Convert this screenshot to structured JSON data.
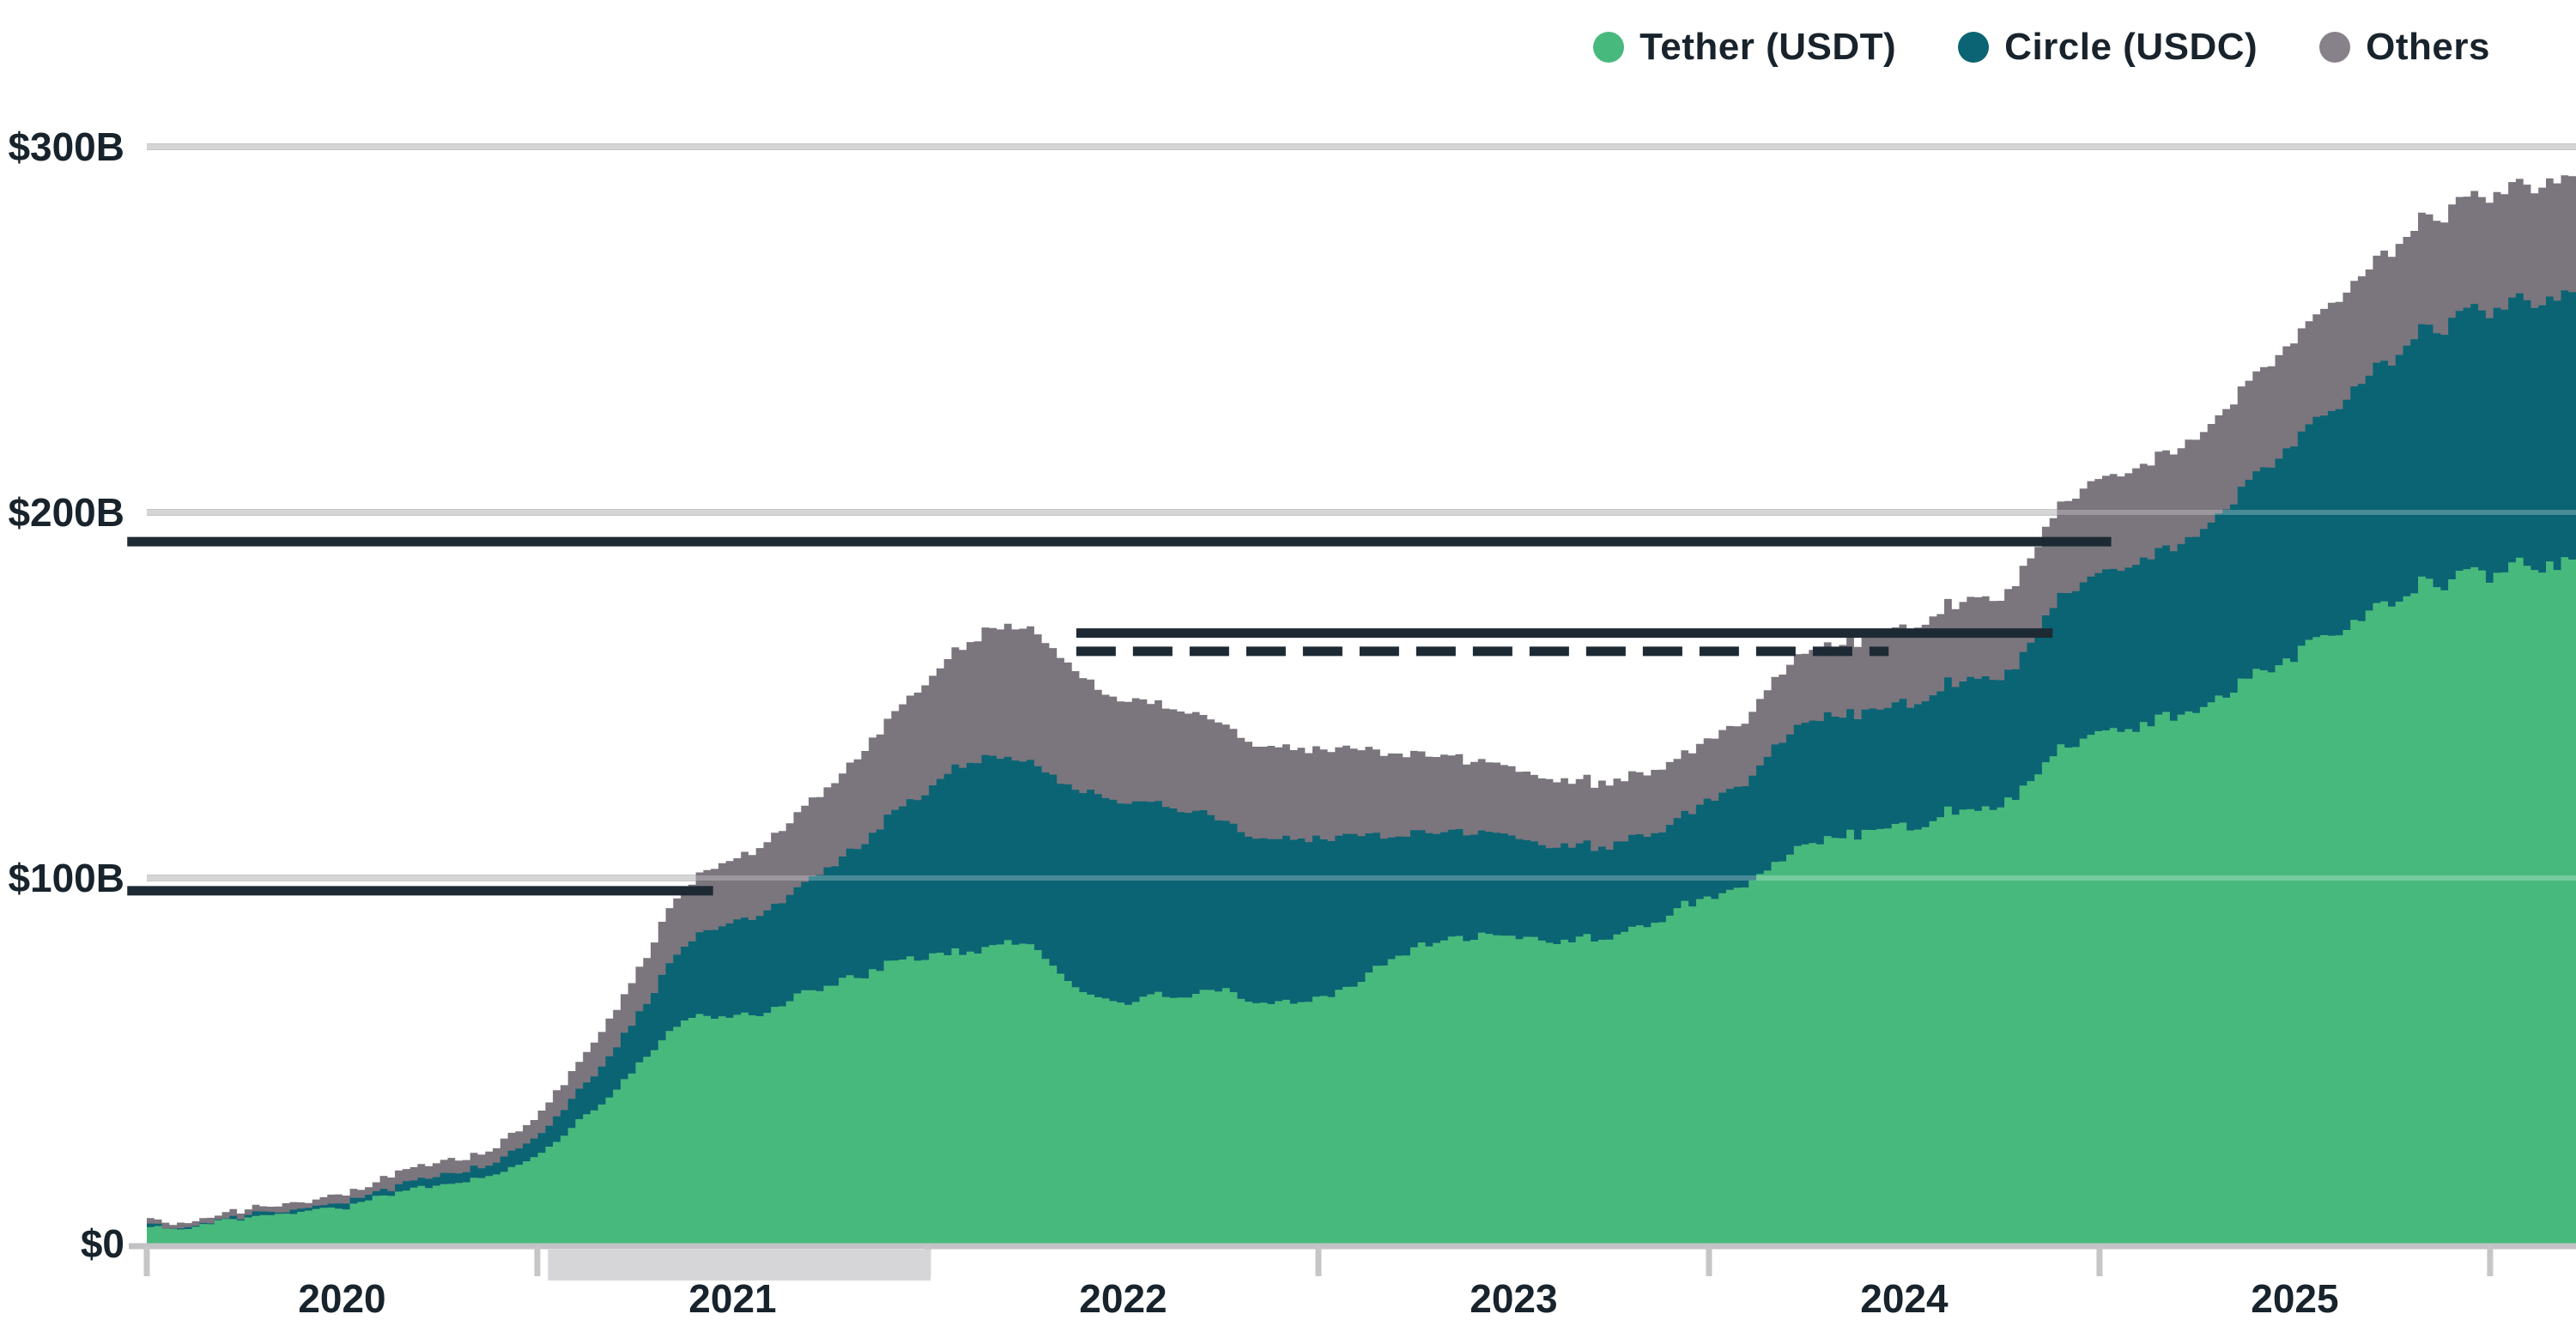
{
  "legend": {
    "items": [
      {
        "label": "Tether (USDT)",
        "color": "#48b97d"
      },
      {
        "label": "Circle (USDC)",
        "color": "#0b6473"
      },
      {
        "label": "Others",
        "color": "#87828a"
      }
    ]
  },
  "chart_data": {
    "type": "area",
    "stacked": true,
    "title": "",
    "xlabel": "",
    "ylabel": "",
    "unit": "$B",
    "x_start": 2020.0,
    "x_step_months": 1,
    "x_end": 2026.22,
    "ylim": [
      0,
      300
    ],
    "grid": "horizontal",
    "legend_position": "top-right",
    "yticks": [
      {
        "value": 0,
        "label": "$0"
      },
      {
        "value": 100,
        "label": "$100B"
      },
      {
        "value": 200,
        "label": "$200B"
      },
      {
        "value": 300,
        "label": "$300B"
      }
    ],
    "gridline_values": [
      100,
      200,
      300
    ],
    "xticks": [
      2020,
      2021,
      2022,
      2023,
      2024,
      2025,
      2026
    ],
    "xtick_labels": [
      {
        "x": 2020.5,
        "label": "2020"
      },
      {
        "x": 2021.5,
        "label": "2021"
      },
      {
        "x": 2022.5,
        "label": "2022"
      },
      {
        "x": 2023.5,
        "label": "2023"
      },
      {
        "x": 2024.5,
        "label": "2024"
      },
      {
        "x": 2025.5,
        "label": "2025"
      }
    ],
    "series": [
      {
        "name": "Tether (USDT)",
        "color": "#48b97d",
        "values": [
          4.2,
          4.4,
          5.8,
          7.3,
          8.3,
          9.1,
          10.0,
          12.8,
          14.8,
          15.9,
          17.6,
          20.6,
          24.2,
          32.5,
          39.0,
          49.0,
          58.5,
          62.8,
          62.2,
          63.5,
          68.5,
          70.8,
          73.8,
          78.3,
          78.7,
          79.8,
          81.2,
          82.7,
          74.0,
          67.0,
          66.2,
          67.8,
          68.3,
          69.2,
          65.8,
          66.2,
          67.2,
          70.8,
          76.8,
          81.3,
          83.3,
          83.8,
          84.0,
          83.0,
          83.4,
          84.2,
          87.2,
          91.7,
          95.2,
          98.2,
          104.2,
          110.2,
          111.2,
          112.7,
          114.2,
          117.2,
          119.2,
          120.2,
          128.2,
          137.5,
          139.5,
          142.0,
          143.5,
          147.5,
          152.5,
          156.5,
          161.5,
          166.5,
          171.5,
          176.5,
          180.5,
          182.5,
          183.5,
          185.0,
          186.5
        ]
      },
      {
        "name": "Circle (USDC)",
        "color": "#0b6473",
        "values": [
          0.5,
          0.5,
          0.7,
          0.7,
          0.8,
          0.9,
          1.1,
          1.4,
          2.2,
          2.7,
          3.0,
          3.9,
          5.4,
          8.0,
          10.8,
          13.5,
          19.0,
          23.0,
          25.8,
          27.5,
          30.0,
          32.5,
          36.5,
          42.0,
          45.8,
          52.3,
          51.3,
          49.8,
          52.8,
          55.8,
          54.8,
          52.3,
          50.3,
          46.3,
          44.8,
          44.8,
          43.3,
          41.3,
          33.8,
          31.3,
          29.3,
          28.3,
          26.8,
          26.3,
          25.3,
          24.8,
          24.8,
          24.8,
          26.8,
          28.3,
          32.3,
          33.8,
          33.3,
          32.8,
          33.8,
          34.8,
          35.8,
          34.8,
          38.8,
          42.5,
          43.5,
          45.0,
          46.0,
          48.5,
          52.0,
          55.5,
          58.5,
          61.5,
          64.5,
          67.0,
          70.0,
          71.5,
          72.0,
          72.5,
          73.5
        ]
      },
      {
        "name": "Others",
        "color": "#7b757e",
        "values": [
          1.2,
          1.3,
          1.5,
          1.7,
          1.8,
          2.0,
          2.3,
          2.9,
          3.4,
          3.6,
          3.9,
          4.4,
          5.6,
          7.6,
          9.8,
          12.2,
          15.0,
          16.5,
          17.2,
          18.8,
          20.8,
          22.4,
          25.2,
          27.8,
          30.3,
          32.3,
          35.8,
          36.3,
          34.3,
          29.3,
          27.8,
          27.3,
          26.8,
          26.3,
          25.8,
          24.8,
          24.3,
          23.8,
          22.8,
          21.3,
          20.3,
          19.3,
          18.8,
          18.3,
          17.8,
          17.3,
          16.8,
          16.8,
          16.8,
          17.3,
          18.8,
          19.3,
          19.8,
          20.3,
          20.8,
          21.3,
          21.8,
          22.3,
          23.8,
          25.5,
          26.0,
          26.0,
          26.0,
          26.5,
          27.0,
          27.5,
          28.0,
          29.0,
          29.5,
          30.0,
          30.5,
          31.0,
          31.0,
          31.5,
          32.0
        ]
      }
    ],
    "reference_lines": [
      {
        "value": 192.0,
        "x_from": 2019.95,
        "x_to": 2025.03,
        "style": "solid"
      },
      {
        "value": 167.0,
        "x_from": 2022.38,
        "x_to": 2024.88,
        "style": "solid"
      },
      {
        "value": 162.0,
        "x_from": 2022.38,
        "x_to": 2024.46,
        "style": "dashed"
      },
      {
        "value": 96.5,
        "x_from": 2019.95,
        "x_to": 2021.45,
        "style": "solid"
      }
    ],
    "axis_highlight_band": {
      "x_from": 2021.027,
      "x_to": 2022.007
    }
  },
  "colors": {
    "background": "#ffffff",
    "gridline": "#c7c7c9",
    "axis_line": "#c2c2c4",
    "tick": "#c6c6c8",
    "band": "#d6d6d8",
    "dark_line": "#1d2a33",
    "text": "#18232c"
  }
}
